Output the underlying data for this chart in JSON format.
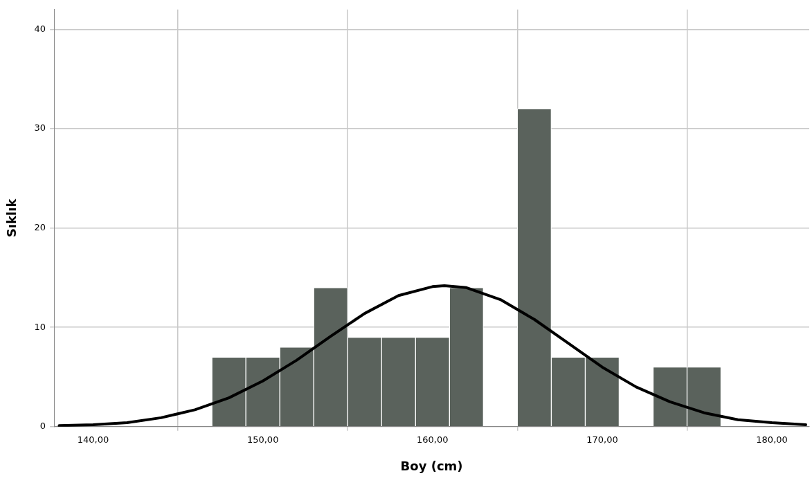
{
  "chart_data": {
    "type": "histogram",
    "xlabel": "Boy (cm)",
    "ylabel": "Sıklık",
    "bins": [
      147,
      149,
      151,
      153,
      155,
      157,
      159,
      161,
      163,
      165,
      167,
      169,
      171,
      173,
      175,
      177
    ],
    "series": [
      {
        "color": "#5a625c",
        "values": [
          7,
          7,
          8,
          14,
          9,
          9,
          9,
          14,
          0,
          32,
          7,
          7,
          0,
          6,
          6
        ]
      },
      {
        "type": "line",
        "color": "#000000",
        "x": [
          138,
          140,
          142,
          144,
          146,
          148,
          150,
          152,
          154,
          156,
          158,
          160,
          160.7,
          162,
          164,
          166,
          168,
          170,
          172,
          174,
          176,
          178,
          180,
          182
        ],
        "values": [
          0.1,
          0.2,
          0.4,
          0.9,
          1.7,
          2.9,
          4.6,
          6.7,
          9.1,
          11.4,
          13.2,
          14.1,
          14.2,
          14.0,
          12.8,
          10.8,
          8.4,
          6.0,
          4.0,
          2.5,
          1.4,
          0.7,
          0.4,
          0.2
        ]
      }
    ],
    "xlim": [
      137.7,
      182.2
    ],
    "ylim": [
      0,
      42
    ],
    "xticks": [
      {
        "value": 140,
        "label": "140,00"
      },
      {
        "value": 150,
        "label": "150,00"
      },
      {
        "value": 160,
        "label": "160,00"
      },
      {
        "value": 170,
        "label": "170,00"
      },
      {
        "value": 180,
        "label": "180,00"
      }
    ],
    "yticks": [
      0,
      10,
      20,
      30,
      40
    ],
    "grid": true,
    "legend": false,
    "marker": "none",
    "line_style": "solid"
  }
}
